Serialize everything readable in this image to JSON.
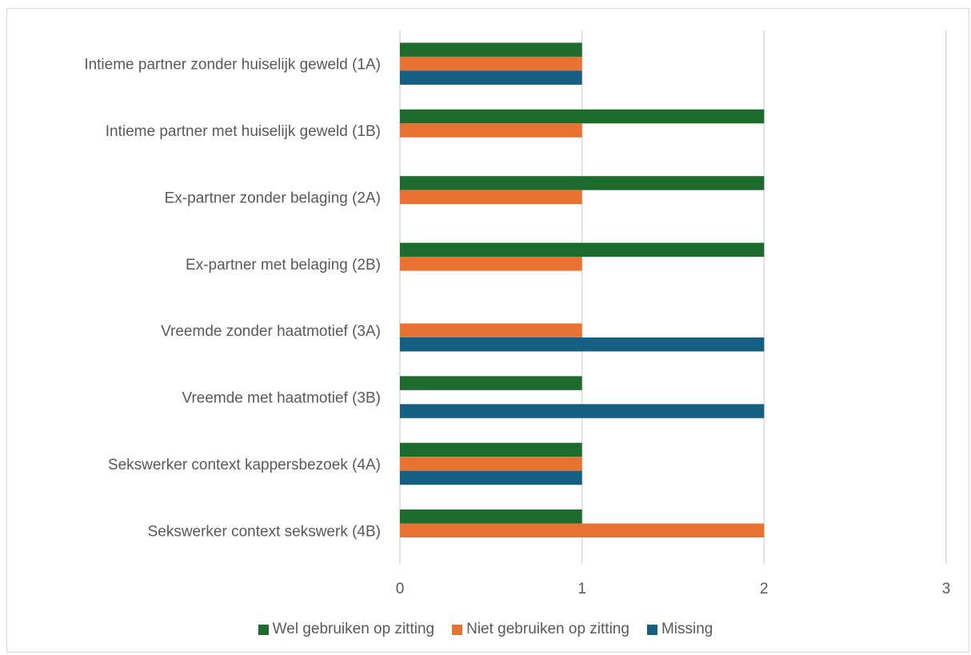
{
  "chart_data": {
    "type": "bar",
    "orientation": "horizontal",
    "categories": [
      "Intieme partner zonder huiselijk geweld (1A)",
      "Intieme partner met huiselijk geweld (1B)",
      "Ex-partner zonder belaging (2A)",
      "Ex-partner met belaging (2B)",
      "Vreemde zonder haatmotief (3A)",
      "Vreemde met haatmotief (3B)",
      "Sekswerker context kappersbezoek (4A)",
      "Sekswerker context sekswerk (4B)"
    ],
    "series": [
      {
        "name": "Wel gebruiken op zitting",
        "color": "#1e6b2e",
        "values": [
          1,
          2,
          2,
          2,
          0,
          1,
          1,
          1
        ]
      },
      {
        "name": "Niet gebruiken op zitting",
        "color": "#e97132",
        "values": [
          1,
          1,
          1,
          1,
          1,
          0,
          1,
          2
        ]
      },
      {
        "name": "Missing",
        "color": "#156082",
        "values": [
          1,
          0,
          0,
          0,
          2,
          2,
          1,
          0
        ]
      }
    ],
    "xlim": [
      0,
      3
    ],
    "xticks": [
      "0",
      "1",
      "2",
      "3"
    ],
    "grid": true,
    "legend_position": "bottom"
  }
}
